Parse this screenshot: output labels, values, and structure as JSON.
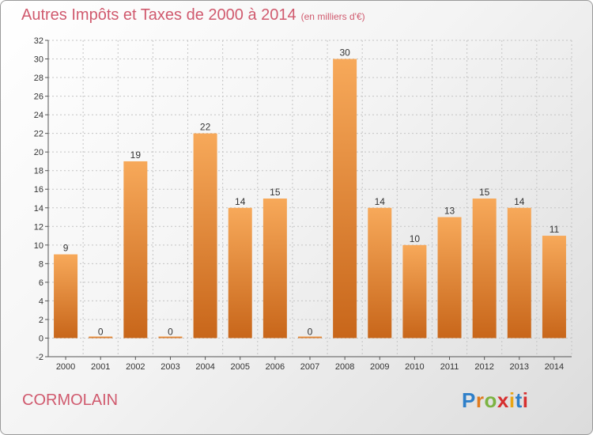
{
  "title": "Autres Impôts et Taxes de 2000 à 2014",
  "subtitle": "(en milliers d'€)",
  "location": "CORMOLAIN",
  "brand": {
    "letters": [
      "P",
      "r",
      "o",
      "x",
      "i",
      "t",
      "i"
    ],
    "colors": [
      "#2e7fc9",
      "#e07b1f",
      "#7cb342",
      "#d62f2f",
      "#e9a514",
      "#2e7fc9",
      "#d62f2f"
    ]
  },
  "colors": {
    "bar_top": "#f7a95a",
    "bar_bottom": "#c8661a",
    "text": "#d05a6e"
  },
  "chart_data": {
    "type": "bar",
    "title": "Autres Impôts et Taxes de 2000 à 2014",
    "subtitle": "(en milliers d'€)",
    "xlabel": "",
    "ylabel": "",
    "categories": [
      "2000",
      "2001",
      "2002",
      "2003",
      "2004",
      "2005",
      "2006",
      "2007",
      "2008",
      "2009",
      "2010",
      "2011",
      "2012",
      "2013",
      "2014"
    ],
    "values": [
      9,
      0,
      19,
      0,
      22,
      14,
      15,
      0,
      30,
      14,
      10,
      13,
      15,
      14,
      11
    ],
    "ylim": [
      -2,
      32
    ],
    "yticks": [
      -2,
      0,
      2,
      4,
      6,
      8,
      10,
      12,
      14,
      16,
      18,
      20,
      22,
      24,
      26,
      28,
      30,
      32
    ],
    "grid": true,
    "legend": "none"
  }
}
